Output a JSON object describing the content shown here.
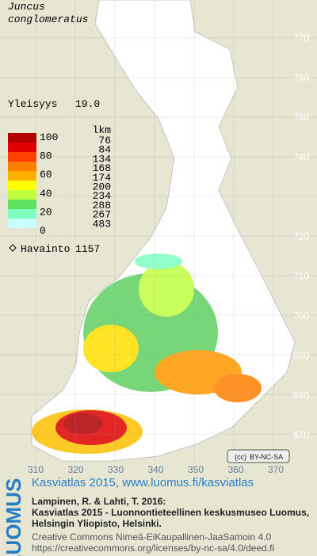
{
  "header": {
    "species": [
      "Juncus",
      "conglomeratus"
    ]
  },
  "frequency": {
    "label": "Yleisyys",
    "value": "19.0"
  },
  "legend": {
    "levels": [
      100,
      80,
      60,
      40,
      20,
      0
    ],
    "count_header": "lkm",
    "counts": [
      76,
      84,
      134,
      168,
      174,
      200,
      234,
      288,
      267,
      483
    ]
  },
  "observations": {
    "label": "Havainto",
    "value": 1157
  },
  "grid": {
    "y_labels": [
      770,
      760,
      750,
      740,
      720,
      710,
      700,
      690,
      680,
      670
    ],
    "x_labels": [
      310,
      320,
      330,
      340,
      350,
      360,
      370
    ]
  },
  "license_badge": "BY-NC-SA",
  "footer": {
    "brand": "LUOMUS",
    "title": "Kasviatlas 2015, www.luomus.fi/kasviatlas",
    "citation": [
      "Lampinen, R. & Lahti, T. 2016:",
      "Kasviatlas 2015 - Luonnontieteellinen keskusmuseo Luomus,",
      "Helsingin Yliopisto, Helsinki."
    ],
    "license": [
      "Creative Commons Nimeä-EiKaupallinen-JaaSamoin 4.0",
      "https://creativecommons.org/licenses/by-nc-sa/4.0/deed.fi"
    ]
  }
}
